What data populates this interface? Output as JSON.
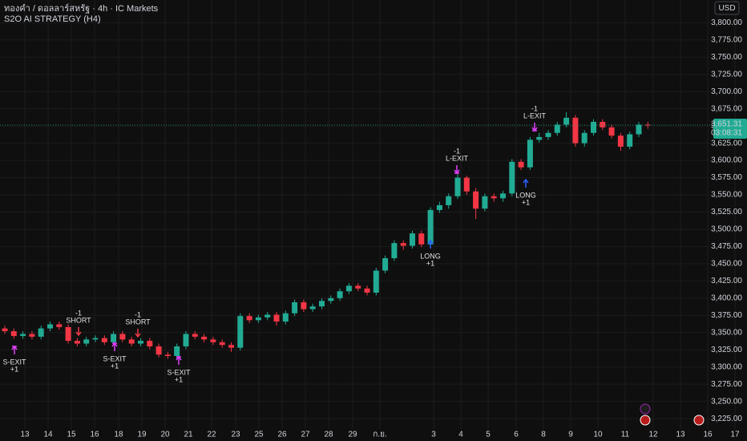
{
  "chart_data": {
    "type": "candlestick",
    "title": "ทองคำ / ดอลลาร์สหรัฐ · 4h · IC Markets",
    "subtitle": "S2O AI STRATEGY (H4)",
    "currency": "USD",
    "up_color": "#22ab94",
    "down_color": "#f23645",
    "open": [
      3356,
      3352,
      3345,
      3348,
      3344,
      3356,
      3362,
      3358,
      3338,
      3334,
      3340,
      3342,
      3336,
      3348,
      3340,
      3334,
      3338,
      3330,
      3318,
      3316,
      3330,
      3348,
      3344,
      3340,
      3336,
      3332,
      3328,
      3374,
      3368,
      3372,
      3376,
      3366,
      3378,
      3394,
      3384,
      3388,
      3396,
      3400,
      3410,
      3418,
      3414,
      3408,
      3440,
      3458,
      3480,
      3476,
      3494,
      3478,
      3528,
      3535,
      3548,
      3575,
      3555,
      3530,
      3548,
      3545,
      3552,
      3598,
      3590,
      3630,
      3634,
      3640,
      3652,
      3662,
      3625,
      3640,
      3656,
      3648,
      3636,
      3620,
      3638,
      3652
    ],
    "high": [
      3360,
      3356,
      3352,
      3352,
      3360,
      3366,
      3366,
      3362,
      3342,
      3344,
      3346,
      3346,
      3352,
      3352,
      3344,
      3342,
      3342,
      3334,
      3322,
      3334,
      3352,
      3352,
      3348,
      3344,
      3340,
      3336,
      3378,
      3378,
      3376,
      3380,
      3380,
      3382,
      3398,
      3398,
      3392,
      3400,
      3404,
      3414,
      3422,
      3422,
      3418,
      3444,
      3462,
      3484,
      3484,
      3498,
      3498,
      3532,
      3540,
      3552,
      3580,
      3578,
      3560,
      3552,
      3552,
      3556,
      3602,
      3602,
      3634,
      3640,
      3644,
      3656,
      3670,
      3666,
      3644,
      3660,
      3660,
      3652,
      3640,
      3642,
      3656,
      3656
    ],
    "low": [
      3348,
      3341,
      3341,
      3340,
      3340,
      3352,
      3354,
      3334,
      3330,
      3330,
      3336,
      3332,
      3332,
      3336,
      3330,
      3330,
      3326,
      3314,
      3312,
      3312,
      3326,
      3340,
      3336,
      3332,
      3328,
      3322,
      3324,
      3364,
      3364,
      3368,
      3360,
      3362,
      3374,
      3380,
      3380,
      3384,
      3392,
      3396,
      3406,
      3410,
      3404,
      3404,
      3436,
      3454,
      3470,
      3472,
      3474,
      3474,
      3524,
      3530,
      3544,
      3550,
      3515,
      3526,
      3540,
      3540,
      3548,
      3586,
      3586,
      3626,
      3630,
      3636,
      3648,
      3620,
      3620,
      3636,
      3644,
      3632,
      3614,
      3616,
      3634,
      3646
    ],
    "close": [
      3352,
      3345,
      3348,
      3344,
      3356,
      3362,
      3358,
      3338,
      3334,
      3340,
      3342,
      3336,
      3348,
      3340,
      3334,
      3338,
      3330,
      3318,
      3316,
      3330,
      3348,
      3344,
      3340,
      3336,
      3332,
      3328,
      3374,
      3368,
      3372,
      3376,
      3366,
      3378,
      3394,
      3384,
      3388,
      3396,
      3400,
      3410,
      3418,
      3414,
      3408,
      3440,
      3458,
      3480,
      3476,
      3494,
      3478,
      3528,
      3535,
      3548,
      3575,
      3555,
      3530,
      3548,
      3545,
      3552,
      3598,
      3590,
      3630,
      3634,
      3640,
      3652,
      3662,
      3625,
      3640,
      3656,
      3648,
      3636,
      3620,
      3638,
      3652,
      3651
    ],
    "ylim": [
      3210,
      3833
    ],
    "yticks": [
      {
        "value": 3225,
        "label": "3,225.00"
      },
      {
        "value": 3250,
        "label": "3,250.00"
      },
      {
        "value": 3275,
        "label": "3,275.00"
      },
      {
        "value": 3300,
        "label": "3,300.00"
      },
      {
        "value": 3325,
        "label": "3,325.00"
      },
      {
        "value": 3350,
        "label": "3,350.00"
      },
      {
        "value": 3375,
        "label": "3,375.00"
      },
      {
        "value": 3400,
        "label": "3,400.00"
      },
      {
        "value": 3425,
        "label": "3,425.00"
      },
      {
        "value": 3450,
        "label": "3,450.00"
      },
      {
        "value": 3475,
        "label": "3,475.00"
      },
      {
        "value": 3500,
        "label": "3,500.00"
      },
      {
        "value": 3525,
        "label": "3,525.00"
      },
      {
        "value": 3550,
        "label": "3,550.00"
      },
      {
        "value": 3575,
        "label": "3,575.00"
      },
      {
        "value": 3600,
        "label": "3,600.00"
      },
      {
        "value": 3625,
        "label": "3,625.00"
      },
      {
        "value": 3650,
        "label": "3,650.00"
      },
      {
        "value": 3675,
        "label": "3,675.00"
      },
      {
        "value": 3700,
        "label": "3,700.00"
      },
      {
        "value": 3725,
        "label": "3,725.00"
      },
      {
        "value": 3750,
        "label": "3,750.00"
      },
      {
        "value": 3775,
        "label": "3,775.00"
      },
      {
        "value": 3800,
        "label": "3,800.00"
      }
    ],
    "x_labels": [
      "13",
      "14",
      "15",
      "16",
      "18",
      "19",
      "20",
      "21",
      "22",
      "23",
      "25",
      "26",
      "27",
      "28",
      "29",
      "ก.ย.",
      "3",
      "4",
      "5",
      "6",
      "8",
      "9",
      "10",
      "11",
      "12",
      "13",
      "16",
      "17"
    ],
    "last_price": {
      "value": 3651.31,
      "label": "3,651.31"
    },
    "countdown": "03:08:31",
    "signals": [
      {
        "label": "S-EXIT",
        "qty": "+1"
      },
      {
        "label": "SHORT",
        "qty": "-1"
      },
      {
        "label": "S-EXIT",
        "qty": "+1"
      },
      {
        "label": "SHORT",
        "qty": "-1"
      },
      {
        "label": "S-EXIT",
        "qty": "+1"
      },
      {
        "label": "LONG",
        "qty": "+1"
      },
      {
        "label": "L-EXIT",
        "qty": "-1"
      },
      {
        "label": "LONG",
        "qty": "+1"
      },
      {
        "label": "L-EXIT",
        "qty": "-1"
      }
    ],
    "grid": true
  }
}
